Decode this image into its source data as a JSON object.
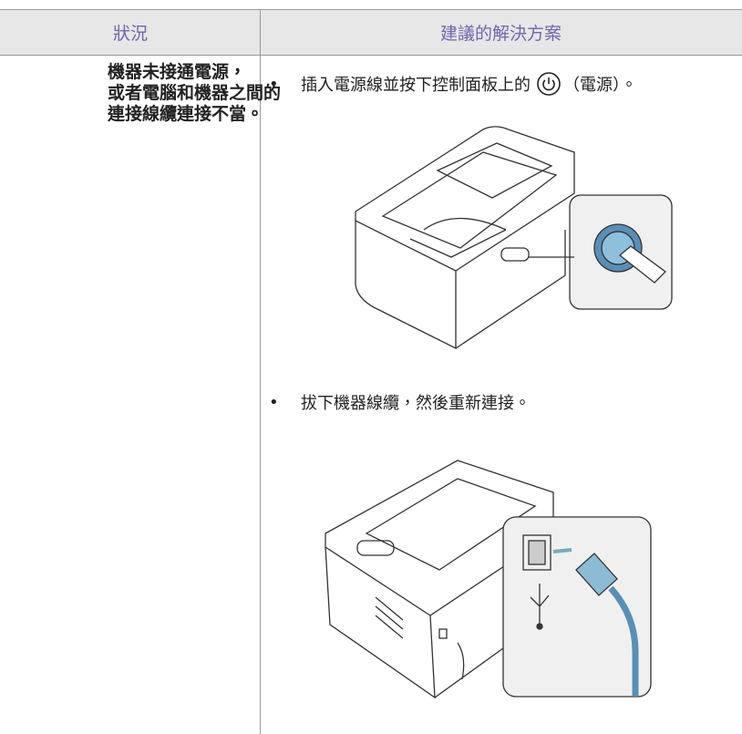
{
  "table": {
    "header": [
      "狀況",
      "建議的解決方案"
    ],
    "rows": [
      {
        "situation": [
          "機器未接通電源，",
          "或者電腦和機器之間的",
          "連接線纜連接不當。"
        ],
        "solutions": [
          {
            "before": "插入電源線並按下控制面板上的",
            "after": "（電源）。"
          },
          {
            "before": "拔下機器線纜，然後重新連接。"
          }
        ]
      }
    ]
  }
}
